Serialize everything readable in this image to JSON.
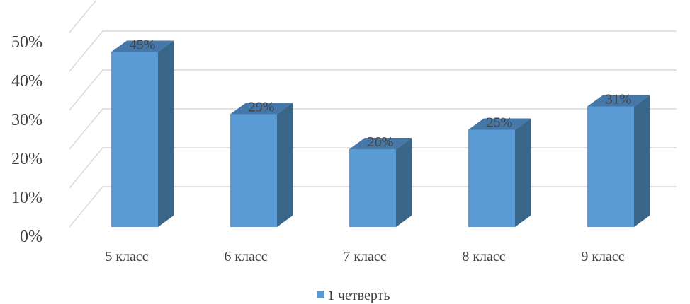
{
  "chart_data": {
    "type": "bar",
    "style": "3d-column",
    "categories": [
      "5 класс",
      "6 класс",
      "7 класс",
      "8 класс",
      "9 класс"
    ],
    "series": [
      {
        "name": "1 четверть",
        "values": [
          45,
          29,
          20,
          25,
          31
        ],
        "labels": [
          "45%",
          "29%",
          "20%",
          "25%",
          "31%"
        ],
        "color": "#5b9bd5",
        "side_color": "#3a6789",
        "top_color": "#4577a8"
      }
    ],
    "ylim": [
      0,
      50
    ],
    "yticks": [
      {
        "value": 0,
        "label": "0%"
      },
      {
        "value": 10,
        "label": "10%"
      },
      {
        "value": 20,
        "label": "20%"
      },
      {
        "value": 30,
        "label": "30%"
      },
      {
        "value": 40,
        "label": "40%"
      },
      {
        "value": 50,
        "label": "50%"
      }
    ],
    "grid": true,
    "grid_color": "#d9d9d9",
    "legend": "bottom-center"
  }
}
